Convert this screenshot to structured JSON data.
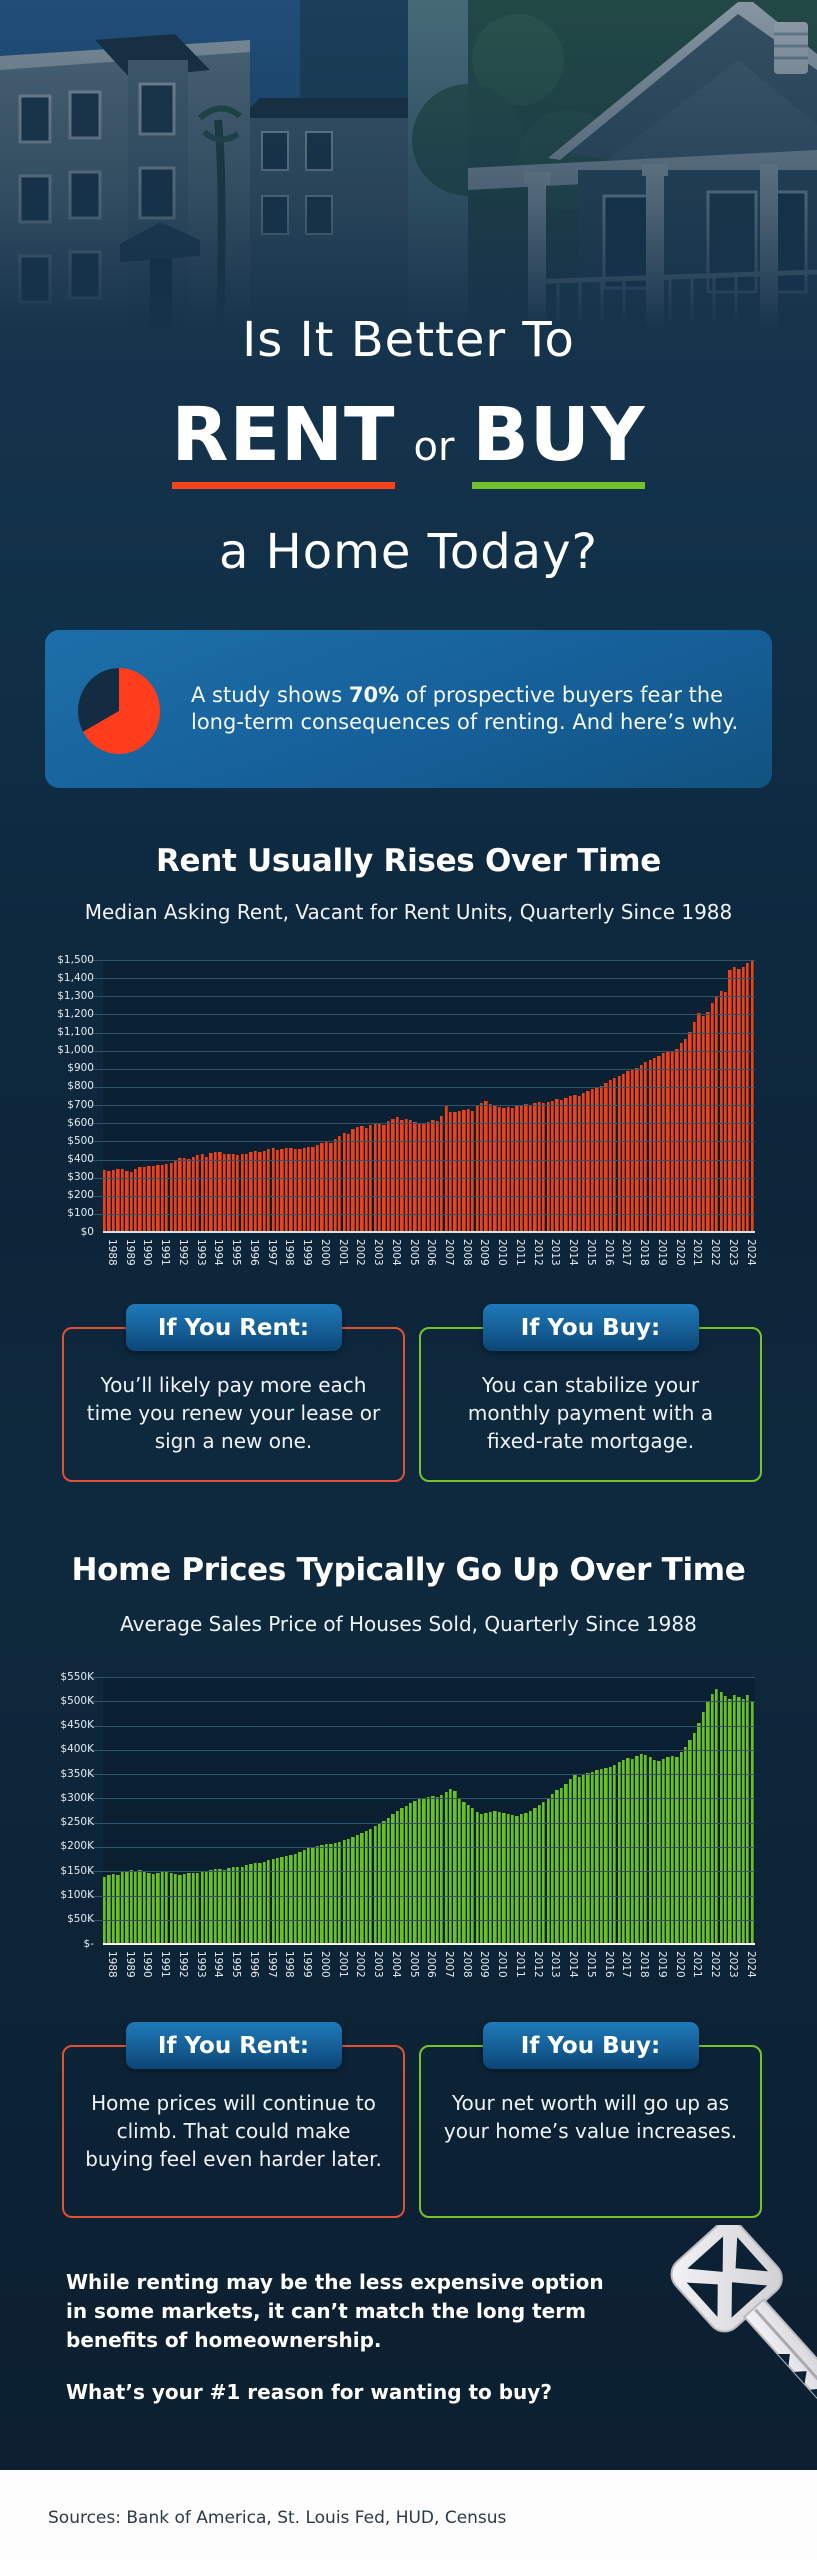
{
  "title": {
    "line1": "Is It Better To",
    "rent": "RENT",
    "or": "or",
    "buy": "BUY",
    "line3": "a Home Today?"
  },
  "callout": {
    "text_prefix": "A study shows ",
    "stat": "70%",
    "text_suffix": " of prospective buyers fear the long-term consequences of renting. And here’s why.",
    "pie_orange_pct": 70,
    "pie_navy_pct": 30
  },
  "section_rent": {
    "heading": "Rent Usually Rises Over Time",
    "subtitle": "Median Asking Rent, Vacant for Rent Units, Quarterly Since 1988"
  },
  "section_home": {
    "heading": "Home Prices Typically Go Up Over Time",
    "subtitle": "Average Sales Price of Houses Sold, Quarterly Since 1988"
  },
  "chart_data": [
    {
      "type": "bar",
      "title": "Median Asking Rent, Vacant for Rent Units, Quarterly Since 1988",
      "xlabel": "",
      "ylabel": "Median asking rent ($)",
      "ylim": [
        0,
        1500
      ],
      "y_tick_step": 100,
      "y_tick_labels": [
        "$0",
        "$100",
        "$200",
        "$300",
        "$400",
        "$500",
        "$600",
        "$700",
        "$800",
        "$900",
        "$1,000",
        "$1,100",
        "$1,200",
        "$1,300",
        "$1,400",
        "$1,500"
      ],
      "categories": [
        "1988",
        "1989",
        "1990",
        "1991",
        "1992",
        "1993",
        "1994",
        "1995",
        "1996",
        "1997",
        "1998",
        "1999",
        "2000",
        "2001",
        "2002",
        "2003",
        "2004",
        "2005",
        "2006",
        "2007",
        "2008",
        "2009",
        "2010",
        "2011",
        "2012",
        "2013",
        "2014",
        "2015",
        "2016",
        "2017",
        "2018",
        "2019",
        "2020",
        "2021",
        "2022",
        "2023",
        "2024"
      ],
      "frequency": "quarterly",
      "bar_color": "#e8431d",
      "bar_edge_color": "#a63312",
      "grid": true,
      "legend_position": "none",
      "values": [
        340,
        338,
        343,
        346,
        350,
        336,
        331,
        348,
        356,
        361,
        366,
        363,
        368,
        372,
        376,
        379,
        400,
        406,
        409,
        403,
        412,
        426,
        429,
        416,
        436,
        443,
        439,
        431,
        429,
        433,
        427,
        431,
        433,
        441,
        446,
        439,
        449,
        456,
        461,
        453,
        459,
        466,
        463,
        456,
        456,
        463,
        471,
        469,
        479,
        489,
        496,
        491,
        513,
        531,
        546,
        539,
        566,
        581,
        586,
        576,
        589,
        597,
        601,
        593,
        611,
        626,
        633,
        619,
        623,
        616,
        606,
        601,
        599,
        609,
        616,
        611,
        638,
        700,
        660,
        664,
        666,
        673,
        681,
        669,
        696,
        711,
        722,
        706,
        699,
        689,
        683,
        691,
        685,
        693,
        701,
        706,
        703,
        711,
        719,
        713,
        716,
        723,
        731,
        726,
        739,
        749,
        757,
        751,
        766,
        779,
        791,
        801,
        806,
        821,
        839,
        851,
        859,
        873,
        889,
        896,
        906,
        921,
        939,
        949,
        959,
        973,
        989,
        1001,
        996,
        1011,
        1041,
        1063,
        1101,
        1161,
        1206,
        1191,
        1216,
        1261,
        1301,
        1331,
        1322,
        1446,
        1461,
        1453,
        1459,
        1481,
        1500
      ]
    },
    {
      "type": "bar",
      "title": "Average Sales Price of Houses Sold, Quarterly Since 1988",
      "xlabel": "",
      "ylabel": "Average sales price ($K)",
      "ylim": [
        0,
        550
      ],
      "y_tick_step": 50,
      "y_tick_labels": [
        "$-",
        "$50K",
        "$100K",
        "$150K",
        "$200K",
        "$250K",
        "$300K",
        "$350K",
        "$400K",
        "$450K",
        "$500K",
        "$550K"
      ],
      "categories": [
        "1988",
        "1989",
        "1990",
        "1991",
        "1992",
        "1993",
        "1994",
        "1995",
        "1996",
        "1997",
        "1998",
        "1999",
        "2000",
        "2001",
        "2002",
        "2003",
        "2004",
        "2005",
        "2006",
        "2007",
        "2008",
        "2009",
        "2010",
        "2011",
        "2012",
        "2013",
        "2014",
        "2015",
        "2016",
        "2017",
        "2018",
        "2019",
        "2020",
        "2021",
        "2022",
        "2023",
        "2024"
      ],
      "frequency": "quarterly",
      "bar_color": "#6cbe27",
      "bar_edge_color": "#478f12",
      "grid": true,
      "legend_position": "none",
      "values": [
        138,
        142,
        145,
        143,
        148,
        151,
        152,
        150,
        152,
        150,
        146,
        145,
        147,
        149,
        148,
        146,
        144,
        143,
        145,
        146,
        146,
        147,
        149,
        151,
        152,
        154,
        155,
        153,
        156,
        158,
        159,
        158,
        162,
        165,
        167,
        166,
        170,
        174,
        176,
        178,
        179,
        181,
        183,
        186,
        190,
        194,
        197,
        200,
        202,
        205,
        207,
        206,
        208,
        211,
        214,
        216,
        220,
        225,
        228,
        232,
        238,
        243,
        248,
        254,
        260,
        268,
        274,
        280,
        285,
        290,
        295,
        298,
        300,
        303,
        305,
        302,
        308,
        313,
        320,
        315,
        300,
        292,
        286,
        280,
        272,
        268,
        270,
        273,
        275,
        272,
        270,
        268,
        266,
        264,
        267,
        270,
        275,
        280,
        287,
        292,
        300,
        310,
        318,
        322,
        330,
        340,
        348,
        345,
        348,
        352,
        355,
        358,
        360,
        362,
        365,
        368,
        375,
        380,
        384,
        382,
        388,
        392,
        390,
        386,
        380,
        378,
        382,
        385,
        388,
        385,
        395,
        405,
        420,
        435,
        455,
        478,
        500,
        515,
        525,
        520,
        510,
        505,
        512,
        508,
        505,
        512,
        500
      ]
    }
  ],
  "boxes_rent": {
    "rent": {
      "label": "If You Rent:",
      "text": "You’ll likely pay more each time you renew your lease or sign a new one."
    },
    "buy": {
      "label": "If You Buy:",
      "text": "You can stabilize your monthly payment with a fixed-rate mortgage."
    }
  },
  "boxes_home": {
    "rent": {
      "label": "If You Rent:",
      "text": "Home prices will continue to climb. That could make buying feel even harder later."
    },
    "buy": {
      "label": "If You Buy:",
      "text": "Your net worth will go up as your home’s value increases."
    }
  },
  "bottom": {
    "paragraph": "While renting may be the less expensive option in some markets, it can’t match the long term benefits of homeownership.",
    "question": "What’s your #1 reason for wanting to buy?"
  },
  "footer": {
    "sources": "Sources: Bank of America, St. Louis Fed, HUD, Census"
  },
  "colors": {
    "background_navy": "#0e2a40",
    "rent_accent": "#f3441c",
    "buy_accent": "#70c32a",
    "rent_bar": "#e8431d",
    "buy_bar": "#6cbe27",
    "callout_blue": "#16609a",
    "pill_blue": "#155e96"
  },
  "hero": {
    "left_photo_alt": "apartment buildings",
    "right_photo_alt": "single-family house with porch"
  }
}
